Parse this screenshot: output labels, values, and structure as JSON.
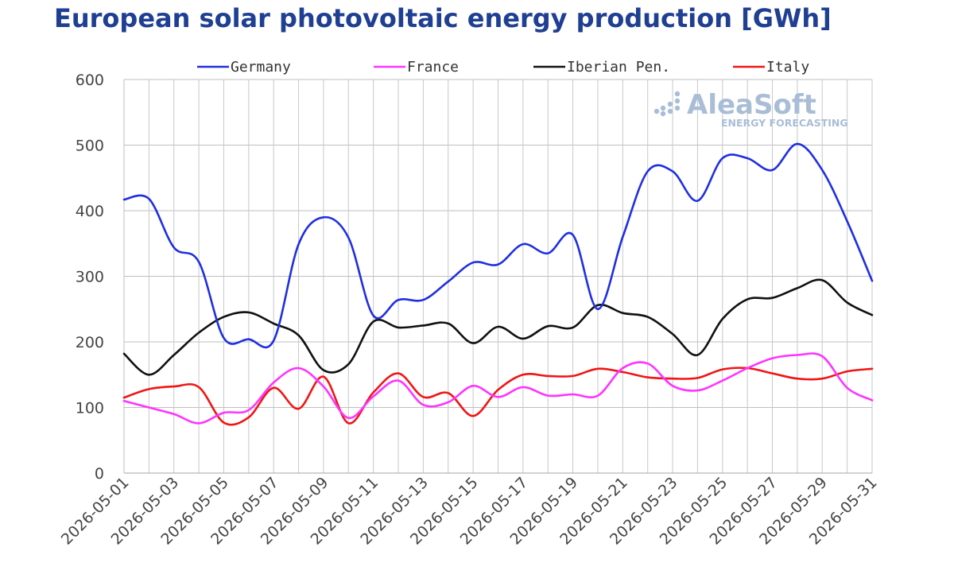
{
  "chart_data": {
    "type": "line",
    "title": "European solar photovoltaic energy production [GWh]",
    "xlabel": "",
    "ylabel": "",
    "ylim": [
      0,
      600
    ],
    "yticks": [
      0,
      100,
      200,
      300,
      400,
      500,
      600
    ],
    "grid": true,
    "legend_position": "top",
    "x": [
      "2026-05-01",
      "2026-05-02",
      "2026-05-03",
      "2026-05-04",
      "2026-05-05",
      "2026-05-06",
      "2026-05-07",
      "2026-05-08",
      "2026-05-09",
      "2026-05-10",
      "2026-05-11",
      "2026-05-12",
      "2026-05-13",
      "2026-05-14",
      "2026-05-15",
      "2026-05-16",
      "2026-05-17",
      "2026-05-18",
      "2026-05-19",
      "2026-05-20",
      "2026-05-21",
      "2026-05-22",
      "2026-05-23",
      "2026-05-24",
      "2026-05-25",
      "2026-05-26",
      "2026-05-27",
      "2026-05-28",
      "2026-05-29",
      "2026-05-30",
      "2026-05-31"
    ],
    "x_tick_labels": [
      "2026-05-01",
      "2026-05-03",
      "2026-05-05",
      "2026-05-07",
      "2026-05-09",
      "2026-05-11",
      "2026-05-13",
      "2026-05-15",
      "2026-05-17",
      "2026-05-19",
      "2026-05-21",
      "2026-05-23",
      "2026-05-25",
      "2026-05-27",
      "2026-05-29",
      "2026-05-31"
    ],
    "series": [
      {
        "name": "Germany",
        "color": "#1f2fe0",
        "values": [
          417,
          418,
          344,
          322,
          206,
          204,
          202,
          349,
          390,
          359,
          240,
          264,
          264,
          292,
          321,
          318,
          349,
          335,
          363,
          250,
          360,
          460,
          460,
          415,
          480,
          480,
          462,
          502,
          462,
          384,
          293
        ]
      },
      {
        "name": "France",
        "color": "#ff33ff",
        "values": [
          110,
          100,
          90,
          76,
          92,
          96,
          138,
          160,
          132,
          84,
          117,
          141,
          104,
          108,
          133,
          116,
          131,
          118,
          120,
          118,
          160,
          167,
          133,
          126,
          141,
          160,
          175,
          180,
          178,
          130,
          111
        ]
      },
      {
        "name": "Iberian Pen.",
        "color": "#111111",
        "values": [
          182,
          150,
          180,
          214,
          238,
          245,
          228,
          210,
          157,
          166,
          231,
          222,
          225,
          228,
          198,
          223,
          205,
          224,
          222,
          256,
          244,
          238,
          212,
          180,
          235,
          265,
          267,
          282,
          294,
          260,
          241
        ]
      },
      {
        "name": "Italy",
        "color": "#f01515",
        "values": [
          115,
          128,
          132,
          131,
          77,
          85,
          130,
          98,
          147,
          76,
          123,
          152,
          116,
          122,
          87,
          127,
          150,
          148,
          148,
          159,
          154,
          146,
          144,
          145,
          158,
          160,
          152,
          144,
          144,
          155,
          159
        ]
      }
    ]
  },
  "watermark": {
    "brand": "AleaSoft",
    "sub": "ENERGY FORECASTING"
  }
}
